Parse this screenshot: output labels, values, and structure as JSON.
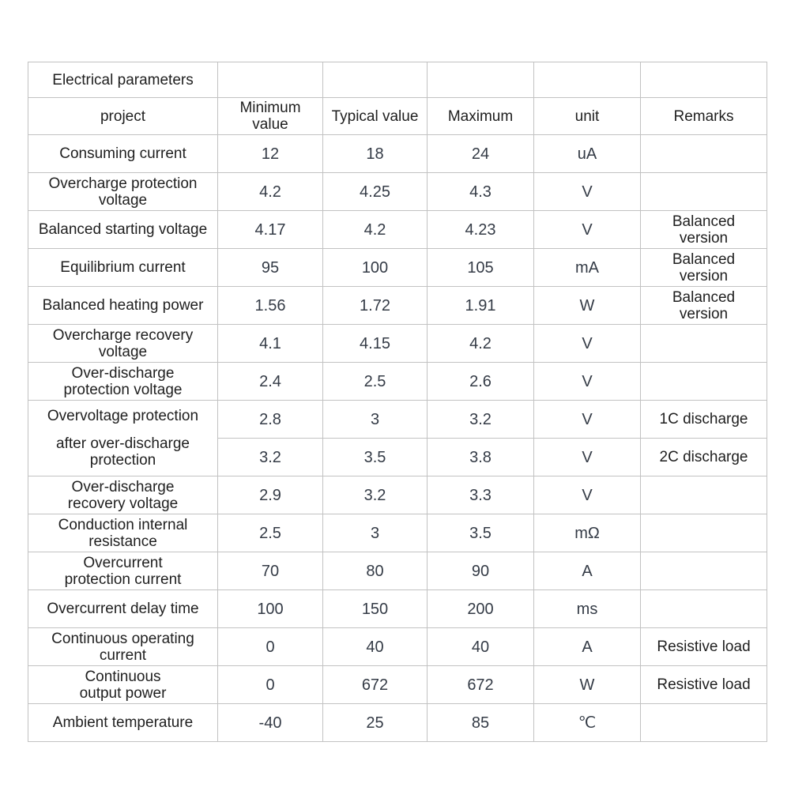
{
  "chart_data": {
    "type": "table",
    "title": "Electrical parameters",
    "columns": {
      "project": "project",
      "min": "Minimum\nvalue",
      "typ": "Typical value",
      "max": "Maximum",
      "unit": "unit",
      "remarks": "Remarks"
    },
    "rows": [
      {
        "label": "Consuming current",
        "min": "12",
        "typ": "18",
        "max": "24",
        "unit": "uA",
        "remarks": ""
      },
      {
        "label": "Overcharge protection\nvoltage",
        "min": "4.2",
        "typ": "4.25",
        "max": "4.3",
        "unit": "V",
        "remarks": ""
      },
      {
        "label": "Balanced starting voltage",
        "min": "4.17",
        "typ": "4.2",
        "max": "4.23",
        "unit": "V",
        "remarks": "Balanced\nversion"
      },
      {
        "label": "Equilibrium current",
        "min": "95",
        "typ": "100",
        "max": "105",
        "unit": "mA",
        "remarks": "Balanced\nversion"
      },
      {
        "label": "Balanced heating power",
        "min": "1.56",
        "typ": "1.72",
        "max": "1.91",
        "unit": "W",
        "remarks": "Balanced\nversion"
      },
      {
        "label": "Overcharge recovery\nvoltage",
        "min": "4.1",
        "typ": "4.15",
        "max": "4.2",
        "unit": "V",
        "remarks": ""
      },
      {
        "label": "Over-discharge\nprotection voltage",
        "min": "2.4",
        "typ": "2.5",
        "max": "2.6",
        "unit": "V",
        "remarks": ""
      },
      {
        "label": "Overvoltage protection",
        "label_part2": "after over-discharge\nprotection",
        "rowspan": 2,
        "min": "2.8",
        "typ": "3",
        "max": "3.2",
        "unit": "V",
        "remarks": "1C discharge"
      },
      {
        "merged_into_above": true,
        "min": "3.2",
        "typ": "3.5",
        "max": "3.8",
        "unit": "V",
        "remarks": "2C discharge"
      },
      {
        "label": "Over-discharge\nrecovery voltage",
        "min": "2.9",
        "typ": "3.2",
        "max": "3.3",
        "unit": "V",
        "remarks": ""
      },
      {
        "label": "Conduction internal\nresistance",
        "min": "2.5",
        "typ": "3",
        "max": "3.5",
        "unit": "mΩ",
        "remarks": ""
      },
      {
        "label": "Overcurrent\nprotection current",
        "min": "70",
        "typ": "80",
        "max": "90",
        "unit": "A",
        "remarks": ""
      },
      {
        "label": "Overcurrent delay time",
        "min": "100",
        "typ": "150",
        "max": "200",
        "unit": "ms",
        "remarks": ""
      },
      {
        "label": "Continuous operating\ncurrent",
        "min": "0",
        "typ": "40",
        "max": "40",
        "unit": "A",
        "remarks": "Resistive load"
      },
      {
        "label": "Continuous\noutput power",
        "min": "0",
        "typ": "672",
        "max": "672",
        "unit": "W",
        "remarks": "Resistive load"
      },
      {
        "label": "Ambient temperature",
        "min": "-40",
        "typ": "25",
        "max": "85",
        "unit": "℃",
        "remarks": ""
      }
    ]
  },
  "colors": {
    "background": "#ffffff",
    "border": "#c2c2c2",
    "label_text": "#1f1f1f",
    "value_text": "#343b46"
  }
}
